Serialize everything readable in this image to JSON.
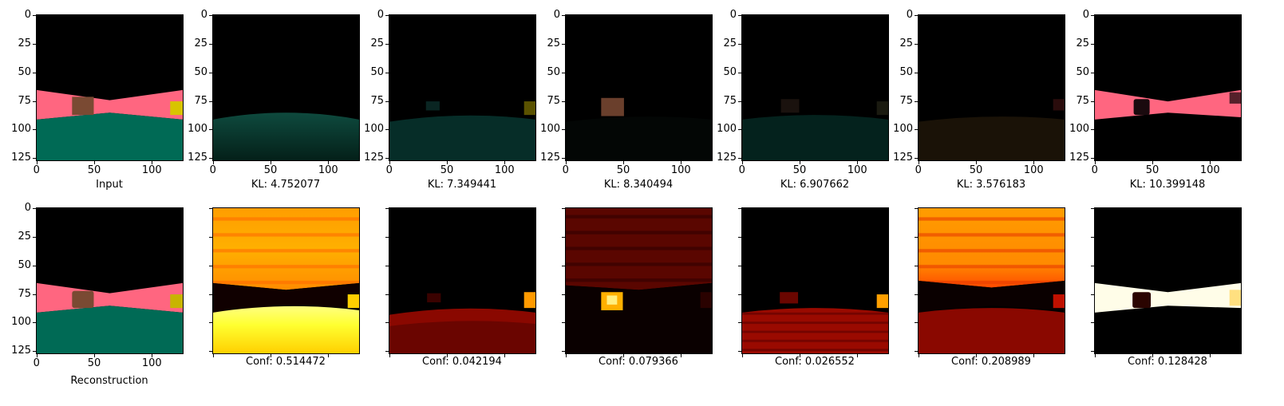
{
  "axis": {
    "yticks": [
      "0",
      "25",
      "50",
      "75",
      "100",
      "125"
    ],
    "xticks": [
      "0",
      "50",
      "100"
    ]
  },
  "top_row": {
    "captions": [
      "Input",
      "KL: 4.752077",
      "KL: 7.349441",
      "KL: 8.340494",
      "KL: 6.907662",
      "KL: 3.576183",
      "KL: 10.399148"
    ]
  },
  "bottom_row": {
    "captions": [
      "Reconstruction",
      "Conf: 0.514472",
      "Conf: 0.042194",
      "Conf: 0.079366",
      "Conf: 0.026552",
      "Conf: 0.208989",
      "Conf: 0.128428"
    ]
  },
  "colors": {
    "wall": "#ff6680",
    "ground": "#006a55",
    "sky": "#000000",
    "box": "#7a4a33",
    "yellow_object": "#d8c400"
  }
}
